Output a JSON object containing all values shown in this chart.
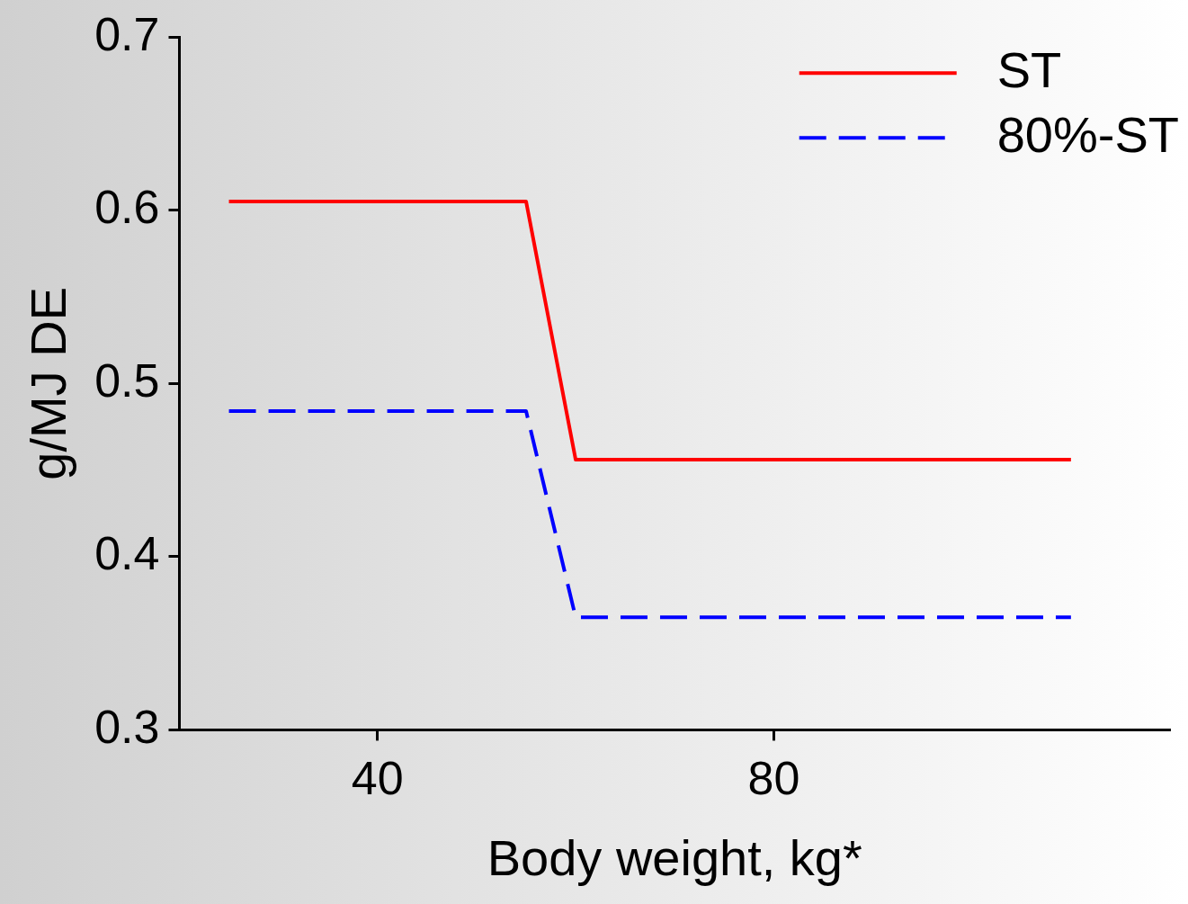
{
  "chart_data": {
    "type": "line",
    "xlabel": "Body weight, kg*",
    "ylabel": "g/MJ DE",
    "xlim": [
      20,
      120
    ],
    "xticks": [
      40,
      80
    ],
    "ylim": [
      0.3,
      0.7
    ],
    "yticks": [
      0.3,
      0.4,
      0.5,
      0.6,
      0.7
    ],
    "grid": false,
    "legend": "top right",
    "marker": "none",
    "series": [
      {
        "name": "ST",
        "color": "#ff0000",
        "line_style": "solid",
        "x": [
          25,
          55,
          60,
          110
        ],
        "values": [
          0.605,
          0.605,
          0.456,
          0.456
        ]
      },
      {
        "name": "80%-ST",
        "color": "#0000ff",
        "line_style": "dashed",
        "x": [
          25,
          55,
          60,
          110
        ],
        "values": [
          0.484,
          0.484,
          0.365,
          0.365
        ]
      }
    ]
  }
}
